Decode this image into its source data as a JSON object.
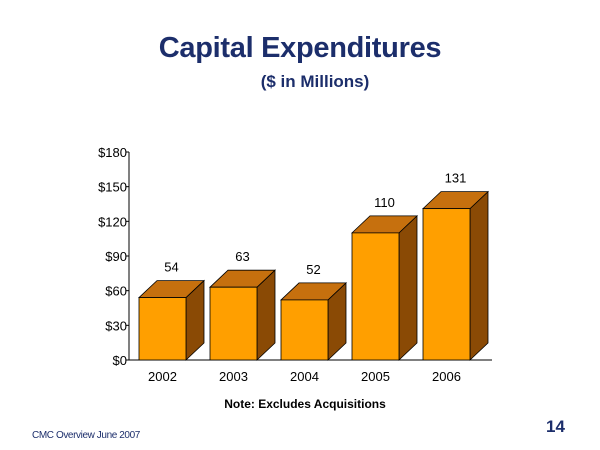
{
  "slide": {
    "title": "Capital Expenditures",
    "subtitle": "($ in Millions)",
    "note": "Note: Excludes Acquisitions",
    "footer": "CMC Overview  June 2007",
    "page_number": "14"
  },
  "colors": {
    "title": "#1c2e6b",
    "bar_front": "#ff9f00",
    "bar_side": "#8a4a05",
    "bar_top": "#c6700e",
    "axis": "#000000"
  },
  "chart_data": {
    "type": "bar",
    "title": "Capital Expenditures",
    "subtitle": "($ in Millions)",
    "xlabel": "",
    "ylabel": "",
    "categories": [
      "2002",
      "2003",
      "2004",
      "2005",
      "2006"
    ],
    "values": [
      54,
      63,
      52,
      110,
      131
    ],
    "data_labels": [
      "54",
      "63",
      "52",
      "110",
      "131"
    ],
    "ylim": [
      0,
      180
    ],
    "yticks": [
      0,
      30,
      60,
      90,
      120,
      150,
      180
    ],
    "ytick_labels": [
      "$0",
      "$30",
      "$60",
      "$90",
      "$120",
      "$150",
      "$180"
    ],
    "grid": false,
    "legend": "none",
    "style": "3d"
  }
}
